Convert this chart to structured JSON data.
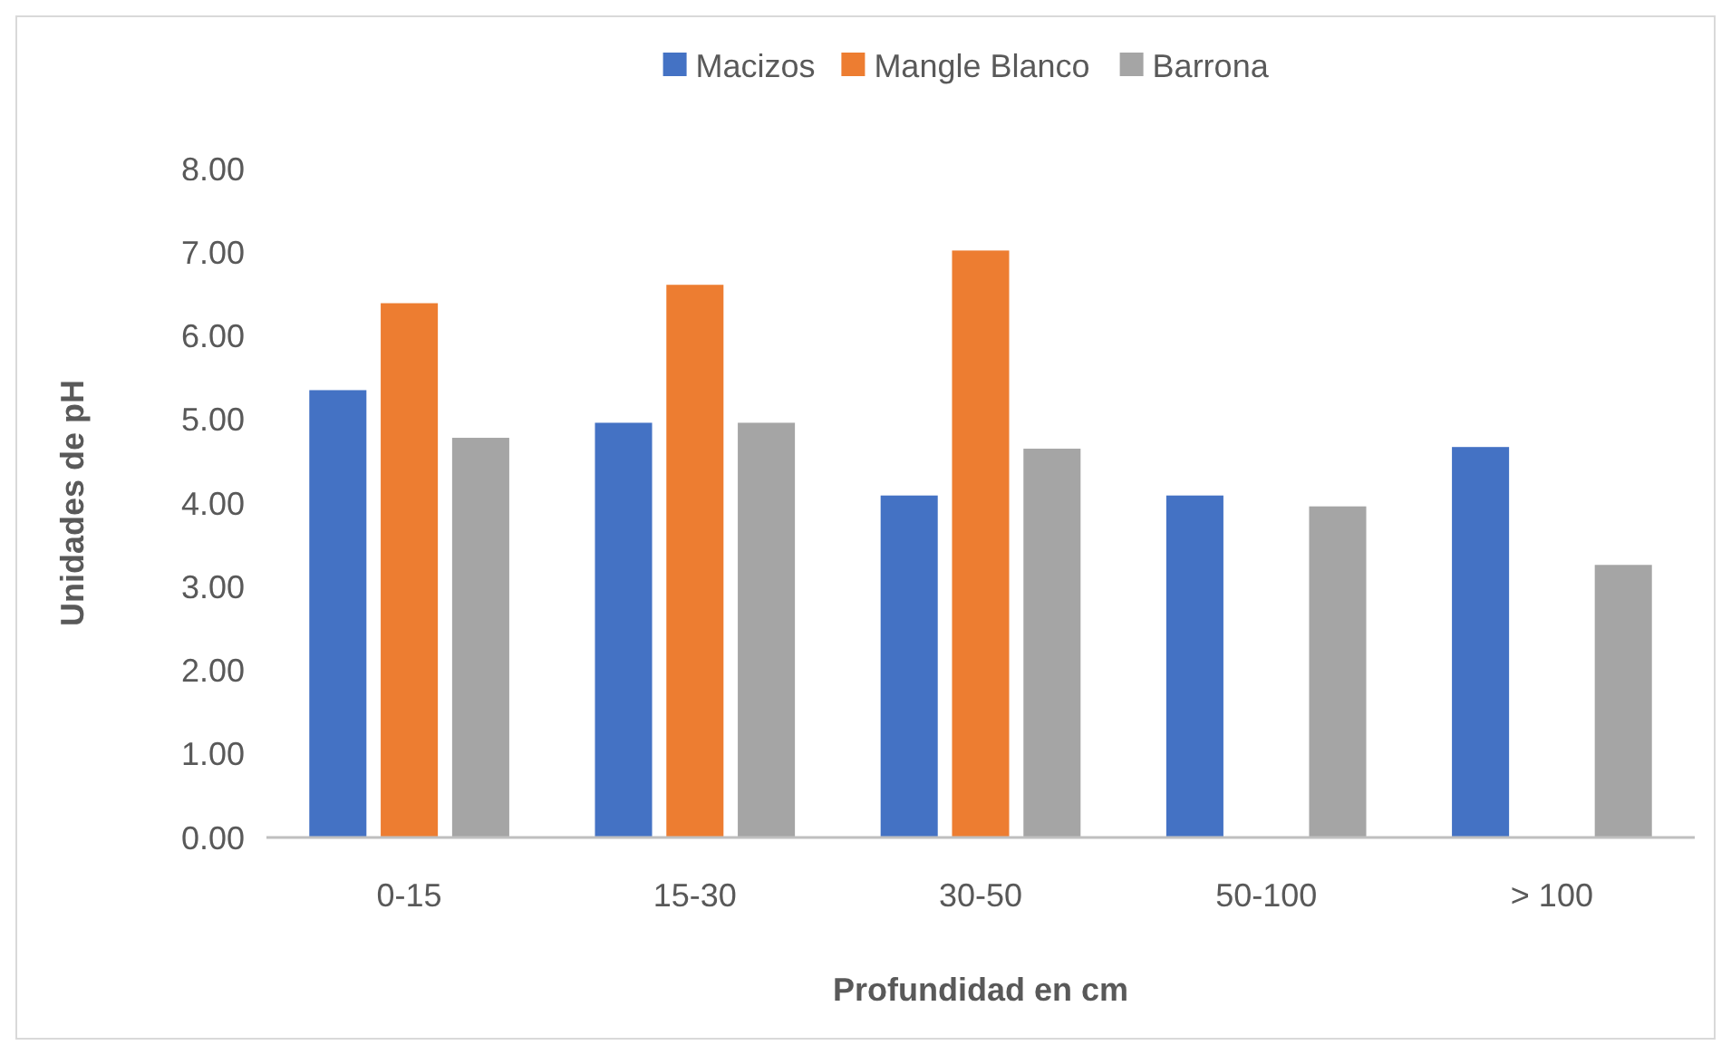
{
  "chart_data": {
    "type": "bar",
    "xlabel": "Profundidad en cm",
    "ylabel": "Unidades de pH",
    "categories": [
      "0-15",
      "15-30",
      "30-50",
      "50-100",
      "> 100"
    ],
    "series": [
      {
        "name": "Macizos",
        "color": "#4472c4",
        "values": [
          5.35,
          4.96,
          4.09,
          4.09,
          4.67
        ]
      },
      {
        "name": "Mangle Blanco",
        "color": "#ed7d31",
        "values": [
          6.39,
          6.61,
          7.02,
          null,
          null
        ]
      },
      {
        "name": "Barrona",
        "color": "#a5a5a5",
        "values": [
          4.78,
          4.96,
          4.65,
          3.96,
          3.26
        ]
      }
    ],
    "ylim": [
      0,
      8
    ],
    "yticks": [
      {
        "value": 0,
        "label": "0.00"
      },
      {
        "value": 1,
        "label": "1.00"
      },
      {
        "value": 2,
        "label": "2.00"
      },
      {
        "value": 3,
        "label": "3.00"
      },
      {
        "value": 4,
        "label": "4.00"
      },
      {
        "value": 5,
        "label": "5.00"
      },
      {
        "value": 6,
        "label": "6.00"
      },
      {
        "value": 7,
        "label": "7.00"
      },
      {
        "value": 8,
        "label": "8.00"
      }
    ],
    "grid": false,
    "legend": "top"
  }
}
